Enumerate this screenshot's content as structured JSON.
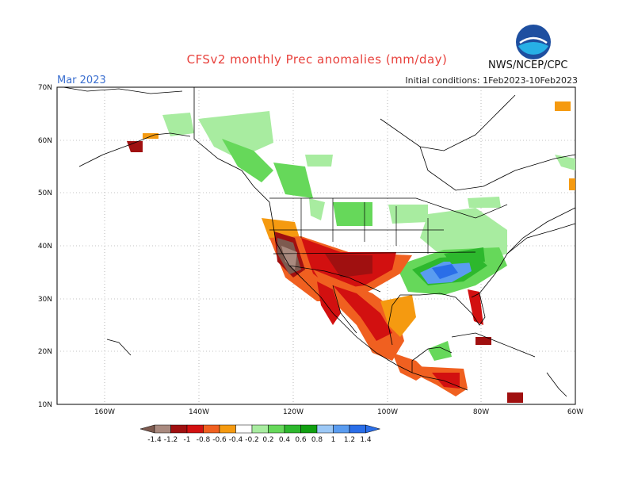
{
  "title": "CFSv2 monthly Prec anomalies (mm/day)",
  "month": "Mar 2023",
  "initial_conditions": "Initial conditions: 1Feb2023-10Feb2023",
  "agency": "NWS/NCEP/CPC",
  "logo_text": "NOAA",
  "lat_labels": [
    "70N",
    "60N",
    "50N",
    "40N",
    "30N",
    "20N",
    "10N"
  ],
  "lon_labels": [
    "160W",
    "140W",
    "120W",
    "100W",
    "80W",
    "60W"
  ],
  "colorbar": {
    "labels": [
      "-1.4",
      "-1.2",
      "-1",
      "-0.8",
      "-0.6",
      "-0.4",
      "-0.2",
      "0.2",
      "0.4",
      "0.6",
      "0.8",
      "1",
      "1.2",
      "1.4"
    ],
    "colors": [
      "#7d5a4f",
      "#a98a7f",
      "#a01010",
      "#d21010",
      "#f06020",
      "#f59a10",
      "#ffffff",
      "#a8eca0",
      "#66d85a",
      "#2db82d",
      "#11a011",
      "#9cc8f6",
      "#5a9cf0",
      "#2a6ee8"
    ]
  }
}
